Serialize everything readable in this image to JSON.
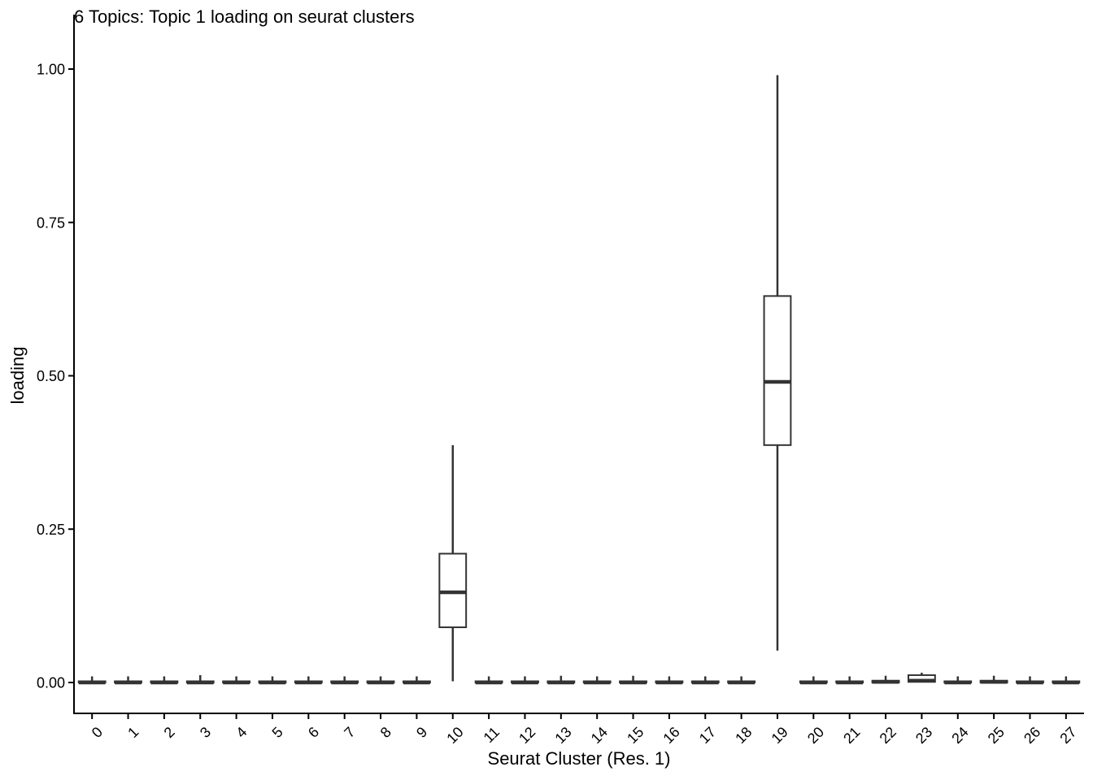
{
  "chart_data": {
    "type": "box",
    "title": "6 Topics: Topic 1 loading on seurat clusters",
    "xlabel": "Seurat Cluster (Res. 1)",
    "ylabel": "loading",
    "ylim": [
      -0.05,
      1.05
    ],
    "yticks": [
      0.0,
      0.25,
      0.5,
      0.75,
      1.0
    ],
    "ytick_labels": [
      "0.00",
      "0.25",
      "0.50",
      "0.75",
      "1.00"
    ],
    "grid": false,
    "categories": [
      "0",
      "1",
      "2",
      "3",
      "4",
      "5",
      "6",
      "7",
      "8",
      "9",
      "10",
      "11",
      "12",
      "13",
      "14",
      "15",
      "16",
      "17",
      "18",
      "19",
      "20",
      "21",
      "22",
      "23",
      "24",
      "25",
      "26",
      "27"
    ],
    "boxes": [
      {
        "min": 0.0,
        "q1": 0.0,
        "median": 0.0,
        "q3": 0.002,
        "max": 0.01
      },
      {
        "min": 0.0,
        "q1": 0.0,
        "median": 0.0,
        "q3": 0.002,
        "max": 0.01
      },
      {
        "min": 0.0,
        "q1": 0.0,
        "median": 0.0,
        "q3": 0.002,
        "max": 0.01
      },
      {
        "min": 0.0,
        "q1": 0.0,
        "median": 0.0,
        "q3": 0.002,
        "max": 0.012
      },
      {
        "min": 0.0,
        "q1": 0.0,
        "median": 0.0,
        "q3": 0.002,
        "max": 0.01
      },
      {
        "min": 0.0,
        "q1": 0.0,
        "median": 0.0,
        "q3": 0.002,
        "max": 0.01
      },
      {
        "min": 0.0,
        "q1": 0.0,
        "median": 0.0,
        "q3": 0.002,
        "max": 0.01
      },
      {
        "min": 0.0,
        "q1": 0.0,
        "median": 0.0,
        "q3": 0.002,
        "max": 0.01
      },
      {
        "min": 0.0,
        "q1": 0.0,
        "median": 0.0,
        "q3": 0.002,
        "max": 0.01
      },
      {
        "min": 0.0,
        "q1": 0.0,
        "median": 0.0,
        "q3": 0.002,
        "max": 0.01
      },
      {
        "min": 0.002,
        "q1": 0.09,
        "median": 0.147,
        "q3": 0.21,
        "max": 0.387
      },
      {
        "min": 0.0,
        "q1": 0.0,
        "median": 0.0,
        "q3": 0.002,
        "max": 0.01
      },
      {
        "min": 0.0,
        "q1": 0.0,
        "median": 0.0,
        "q3": 0.002,
        "max": 0.01
      },
      {
        "min": 0.0,
        "q1": 0.0,
        "median": 0.0,
        "q3": 0.002,
        "max": 0.011
      },
      {
        "min": 0.0,
        "q1": 0.0,
        "median": 0.0,
        "q3": 0.002,
        "max": 0.01
      },
      {
        "min": 0.0,
        "q1": 0.0,
        "median": 0.0,
        "q3": 0.002,
        "max": 0.011
      },
      {
        "min": 0.0,
        "q1": 0.0,
        "median": 0.0,
        "q3": 0.002,
        "max": 0.01
      },
      {
        "min": 0.0,
        "q1": 0.0,
        "median": 0.0,
        "q3": 0.002,
        "max": 0.01
      },
      {
        "min": 0.0,
        "q1": 0.0,
        "median": 0.0,
        "q3": 0.002,
        "max": 0.01
      },
      {
        "min": 0.052,
        "q1": 0.387,
        "median": 0.49,
        "q3": 0.63,
        "max": 0.99
      },
      {
        "min": 0.0,
        "q1": 0.0,
        "median": 0.0,
        "q3": 0.002,
        "max": 0.01
      },
      {
        "min": 0.0,
        "q1": 0.0,
        "median": 0.0,
        "q3": 0.002,
        "max": 0.01
      },
      {
        "min": 0.0,
        "q1": 0.0,
        "median": 0.001,
        "q3": 0.003,
        "max": 0.011
      },
      {
        "min": 0.0,
        "q1": 0.001,
        "median": 0.003,
        "q3": 0.012,
        "max": 0.016
      },
      {
        "min": 0.0,
        "q1": 0.0,
        "median": 0.0,
        "q3": 0.002,
        "max": 0.01
      },
      {
        "min": 0.0,
        "q1": 0.0,
        "median": 0.001,
        "q3": 0.003,
        "max": 0.011
      },
      {
        "min": 0.0,
        "q1": 0.0,
        "median": 0.0,
        "q3": 0.002,
        "max": 0.01
      },
      {
        "min": 0.0,
        "q1": 0.0,
        "median": 0.0,
        "q3": 0.002,
        "max": 0.01
      }
    ]
  }
}
